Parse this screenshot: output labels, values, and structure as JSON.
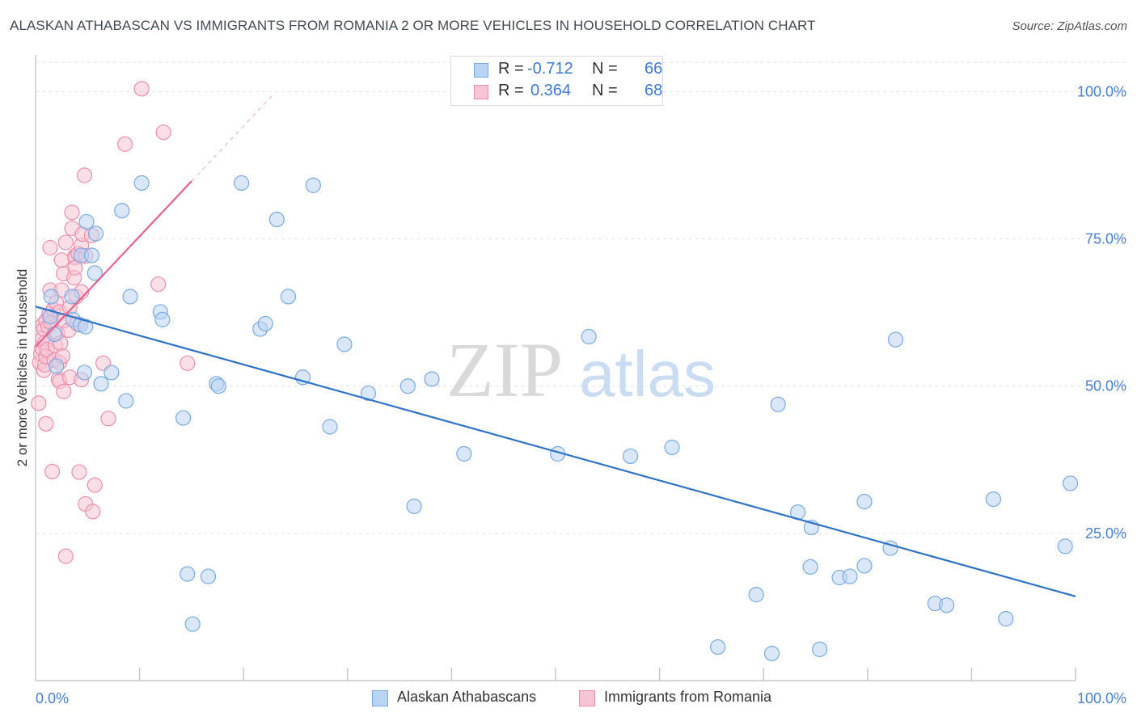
{
  "title": "ALASKAN ATHABASCAN VS IMMIGRANTS FROM ROMANIA 2 OR MORE VEHICLES IN HOUSEHOLD CORRELATION CHART",
  "source": "Source: ZipAtlas.com",
  "watermark": {
    "zip": "ZIP",
    "atlas": "atlas"
  },
  "colors": {
    "blue": "#7aaae4",
    "blue_fill": "#b9d3f3",
    "blue_line": "#2f72c9",
    "pink": "#ec8fae",
    "pink_fill": "#f7c4d4",
    "pink_line": "#e4618c",
    "tick_text": "#4a7fd0"
  },
  "legend": {
    "rows": [
      {
        "r_label": "R =",
        "r_value": "-0.712",
        "n_label": "N =",
        "n_value": "66"
      },
      {
        "r_label": "R =",
        "r_value": "0.364",
        "n_label": "N =",
        "n_value": "68"
      }
    ]
  },
  "bottom_legend": [
    "Alaskan Athabascans",
    "Immigrants from Romania"
  ],
  "chart_data": {
    "type": "scatter",
    "title": "ALASKAN ATHABASCAN VS IMMIGRANTS FROM ROMANIA 2 OR MORE VEHICLES IN HOUSEHOLD CORRELATION CHART",
    "xlabel": "",
    "ylabel": "2 or more Vehicles in Household",
    "xlim": [
      0,
      100
    ],
    "ylim": [
      0,
      105
    ],
    "x_tick_labels": [
      "0.0%",
      "100.0%"
    ],
    "y_ticks": [
      25,
      50,
      75,
      100
    ],
    "y_tick_labels": [
      "25.0%",
      "50.0%",
      "75.0%",
      "100.0%"
    ],
    "grid": "horizontal dashed",
    "legend_position": "top-center",
    "series": [
      {
        "name": "Alaskan Athabascans",
        "color": "#7aaae4",
        "r": -0.712,
        "n": 66,
        "trend": {
          "x0": 0,
          "y0": 63.5,
          "x1": 100,
          "y1": 14.3
        },
        "points": [
          [
            1.5,
            65.2
          ],
          [
            1.4,
            61.8
          ],
          [
            1.8,
            58.8
          ],
          [
            2.0,
            53.4
          ],
          [
            3.5,
            65.2
          ],
          [
            3.6,
            61.3
          ],
          [
            4.3,
            60.4
          ],
          [
            4.4,
            72.2
          ],
          [
            4.7,
            52.3
          ],
          [
            4.8,
            60.1
          ],
          [
            4.9,
            77.9
          ],
          [
            5.4,
            72.2
          ],
          [
            5.7,
            69.2
          ],
          [
            5.8,
            75.9
          ],
          [
            6.3,
            50.4
          ],
          [
            7.3,
            52.3
          ],
          [
            8.3,
            79.8
          ],
          [
            8.7,
            47.5
          ],
          [
            9.1,
            65.2
          ],
          [
            10.2,
            84.5
          ],
          [
            12.0,
            62.6
          ],
          [
            12.2,
            61.3
          ],
          [
            14.2,
            44.6
          ],
          [
            14.6,
            18.1
          ],
          [
            15.1,
            9.6
          ],
          [
            16.6,
            17.7
          ],
          [
            17.4,
            50.4
          ],
          [
            17.6,
            50.0
          ],
          [
            19.8,
            84.5
          ],
          [
            21.6,
            59.7
          ],
          [
            22.1,
            60.6
          ],
          [
            23.2,
            78.3
          ],
          [
            24.3,
            65.2
          ],
          [
            25.7,
            51.5
          ],
          [
            26.7,
            84.1
          ],
          [
            28.3,
            43.1
          ],
          [
            29.7,
            57.1
          ],
          [
            32.0,
            48.8
          ],
          [
            35.8,
            50.0
          ],
          [
            36.4,
            29.6
          ],
          [
            38.1,
            51.2
          ],
          [
            41.2,
            38.5
          ],
          [
            50.2,
            38.5
          ],
          [
            53.2,
            58.4
          ],
          [
            57.2,
            38.1
          ],
          [
            61.2,
            39.6
          ],
          [
            65.6,
            5.7
          ],
          [
            69.3,
            14.6
          ],
          [
            70.8,
            4.6
          ],
          [
            71.4,
            46.9
          ],
          [
            73.3,
            28.6
          ],
          [
            74.5,
            19.3
          ],
          [
            74.6,
            26.0
          ],
          [
            75.4,
            5.3
          ],
          [
            77.3,
            17.5
          ],
          [
            78.3,
            17.7
          ],
          [
            79.7,
            19.5
          ],
          [
            79.7,
            30.4
          ],
          [
            82.2,
            22.5
          ],
          [
            82.7,
            57.9
          ],
          [
            86.5,
            13.1
          ],
          [
            87.6,
            12.8
          ],
          [
            92.1,
            30.8
          ],
          [
            93.3,
            10.5
          ],
          [
            99.0,
            22.8
          ],
          [
            99.5,
            33.5
          ]
        ]
      },
      {
        "name": "Immigrants from Romania",
        "color": "#ec8fae",
        "r": 0.364,
        "n": 68,
        "trend": {
          "x0": 0,
          "y0": 56.7,
          "x1": 15,
          "y1": 84.8
        },
        "trend_dashed": {
          "x0": 15,
          "y0": 84.8,
          "x1": 23,
          "y1": 99.8
        },
        "points": [
          [
            0.3,
            47.1
          ],
          [
            0.4,
            54.0
          ],
          [
            0.5,
            55.5
          ],
          [
            0.6,
            56.5
          ],
          [
            0.7,
            58.1
          ],
          [
            0.7,
            60.4
          ],
          [
            0.8,
            52.7
          ],
          [
            0.8,
            59.7
          ],
          [
            0.9,
            53.6
          ],
          [
            0.9,
            57.4
          ],
          [
            1.0,
            55.0
          ],
          [
            1.0,
            61.1
          ],
          [
            1.0,
            43.6
          ],
          [
            1.1,
            56.2
          ],
          [
            1.2,
            60.1
          ],
          [
            1.3,
            62.2
          ],
          [
            1.4,
            73.5
          ],
          [
            1.4,
            66.3
          ],
          [
            1.5,
            60.8
          ],
          [
            1.6,
            35.5
          ],
          [
            1.7,
            63.0
          ],
          [
            1.8,
            54.4
          ],
          [
            1.9,
            56.9
          ],
          [
            2.0,
            64.2
          ],
          [
            2.1,
            59.0
          ],
          [
            2.2,
            51.2
          ],
          [
            2.3,
            62.6
          ],
          [
            2.3,
            54.0
          ],
          [
            2.3,
            50.8
          ],
          [
            2.4,
            57.3
          ],
          [
            2.5,
            66.3
          ],
          [
            2.5,
            71.4
          ],
          [
            2.6,
            55.1
          ],
          [
            2.7,
            49.1
          ],
          [
            2.7,
            61.1
          ],
          [
            2.7,
            69.1
          ],
          [
            2.9,
            74.4
          ],
          [
            2.9,
            21.1
          ],
          [
            3.2,
            59.5
          ],
          [
            3.3,
            63.4
          ],
          [
            3.3,
            51.5
          ],
          [
            3.5,
            76.8
          ],
          [
            3.5,
            79.5
          ],
          [
            3.7,
            68.4
          ],
          [
            3.8,
            72.1
          ],
          [
            3.8,
            71.8
          ],
          [
            3.8,
            70.1
          ],
          [
            3.9,
            65.2
          ],
          [
            4.0,
            60.6
          ],
          [
            4.1,
            72.5
          ],
          [
            4.2,
            35.4
          ],
          [
            4.4,
            51.1
          ],
          [
            4.4,
            73.9
          ],
          [
            4.4,
            66.0
          ],
          [
            4.5,
            75.8
          ],
          [
            4.7,
            85.8
          ],
          [
            4.8,
            72.1
          ],
          [
            4.8,
            30.0
          ],
          [
            5.4,
            75.6
          ],
          [
            5.5,
            28.7
          ],
          [
            5.7,
            33.2
          ],
          [
            6.5,
            53.9
          ],
          [
            7.0,
            44.5
          ],
          [
            8.6,
            91.1
          ],
          [
            10.2,
            100.5
          ],
          [
            11.8,
            67.3
          ],
          [
            12.3,
            93.1
          ],
          [
            14.6,
            53.9
          ]
        ]
      }
    ]
  }
}
